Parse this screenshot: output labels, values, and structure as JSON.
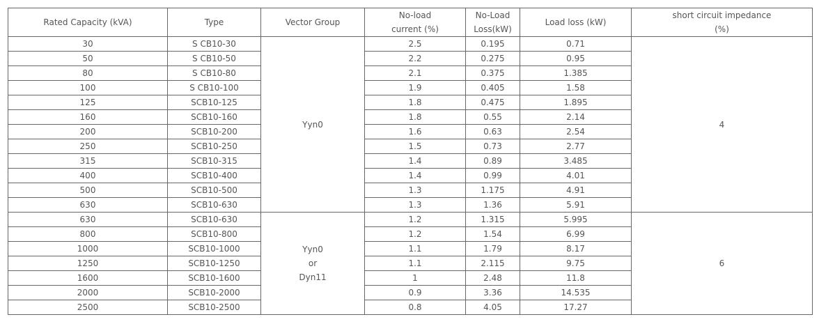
{
  "table": {
    "header": [
      [
        "Rated Capacity (kVA)"
      ],
      [
        "Type"
      ],
      [
        "Vector Group"
      ],
      [
        "No-load",
        "current (%)"
      ],
      [
        "No-Load",
        "Loss(kW)"
      ],
      [
        "Load loss (kW)"
      ],
      [
        "short circuit impedance",
        "(%)"
      ]
    ],
    "groups": [
      {
        "vector_group": [
          "Yyn0"
        ],
        "impedance": "4",
        "rows": [
          [
            30,
            "S CB10-30",
            2.5,
            0.195,
            0.71
          ],
          [
            50,
            "S CB10-50",
            2.2,
            0.275,
            0.95
          ],
          [
            80,
            "S CB10-80",
            2.1,
            0.375,
            1.385
          ],
          [
            100,
            "S CB10-100",
            1.9,
            0.405,
            1.58
          ],
          [
            125,
            "SCB10-125",
            1.8,
            0.475,
            1.895
          ],
          [
            160,
            "SCB10-160",
            1.8,
            0.55,
            2.14
          ],
          [
            200,
            "SCB10-200",
            1.6,
            0.63,
            2.54
          ],
          [
            250,
            "SCB10-250",
            1.5,
            0.73,
            2.77
          ],
          [
            315,
            "SCB10-315",
            1.4,
            0.89,
            3.485
          ],
          [
            400,
            "SCB10-400",
            1.4,
            0.99,
            4.01
          ],
          [
            500,
            "SCB10-500",
            1.3,
            1.175,
            4.91
          ],
          [
            630,
            "SCB10-630",
            1.3,
            1.36,
            5.91
          ]
        ]
      },
      {
        "vector_group": [
          "Yyn0",
          "or",
          "Dyn11"
        ],
        "impedance": "6",
        "rows": [
          [
            630,
            "SCB10-630",
            1.2,
            1.315,
            5.995
          ],
          [
            800,
            "SCB10-800",
            1.2,
            1.54,
            6.99
          ],
          [
            1000,
            "SCB10-1000",
            1.1,
            1.79,
            8.17
          ],
          [
            1250,
            "SCB10-1250",
            1.1,
            2.115,
            9.75
          ],
          [
            1600,
            "SCB10-1600",
            1,
            2.48,
            11.8
          ],
          [
            2000,
            "SCB10-2000",
            0.9,
            3.36,
            14.535
          ],
          [
            2500,
            "SCB10-2500",
            0.8,
            4.05,
            17.27
          ]
        ]
      }
    ]
  }
}
